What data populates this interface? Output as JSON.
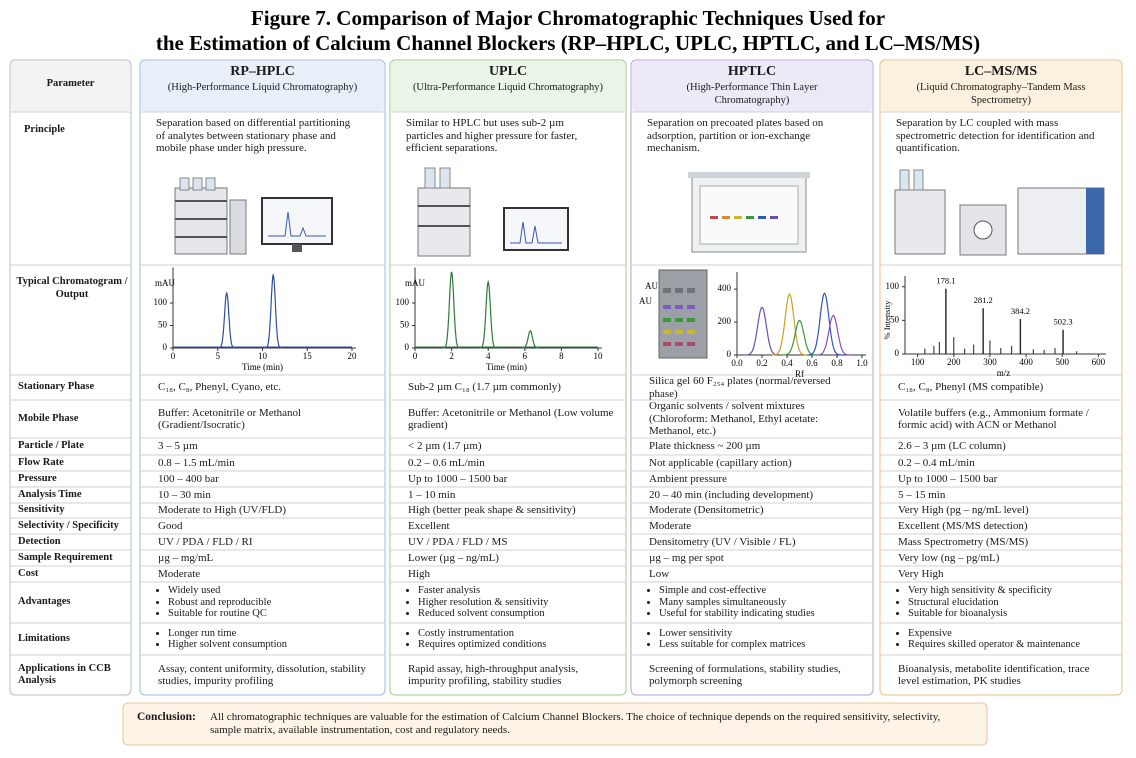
{
  "title": [
    "Figure 7. Comparison of Major Chromatographic Techniques Used for",
    "the Estimation of Calcium Channel Blockers (RP–HPLC, UPLC, HPTLC, and LC–MS/MS)"
  ],
  "table": {
    "corner": "Parameter",
    "columns": [
      {
        "name": "RP–HPLC",
        "full": "(High-Performance Liquid Chromatography)",
        "color": "#9db8e0",
        "tint": "#e8eff9"
      },
      {
        "name": "UPLC",
        "full": "(Ultra-Performance Liquid Chromatography)",
        "color": "#9ccb94",
        "tint": "#eaf4e7"
      },
      {
        "name": "HPTLC",
        "full": "(High-Performance Thin Layer Chromatography)",
        "color": "#b4a6d8",
        "tint": "#eee9f7"
      },
      {
        "name": "LC–MS/MS",
        "full": "(Liquid Chromatography–Tandem Mass Spectrometry)",
        "color": "#e6c086",
        "tint": "#fcf0de"
      }
    ],
    "principle": {
      "label": "Principle",
      "cells": [
        "Separation based on differential partitioning of analytes between stationary phase and mobile phase under high pressure.",
        "Similar to HPLC but uses sub-2 µm particles and higher pressure for faster, efficient separations.",
        "Separation on precoated plates based on adsorption, partition or ion-exchange mechanism.",
        "Separation by LC coupled with mass spectrometric detection for identification and quantification."
      ]
    },
    "output_label": "Typical Chromatogram / Output",
    "rows": [
      {
        "label": "Stationary Phase",
        "cells": [
          "C₁₈, C₈, Phenyl, Cyano, etc.",
          "Sub-2 µm C₁₈ (1.7 µm commonly)",
          "Silica gel 60 F₂₅₄ plates (normal/reversed phase)",
          "C₁₈, C₈, Phenyl (MS compatible)"
        ]
      },
      {
        "label": "Mobile Phase",
        "cells": [
          "Buffer: Acetonitrile or Methanol (Gradient/Isocratic)",
          "Buffer: Acetonitrile or Methanol (Low volume gradient)",
          "Organic solvents / solvent mixtures (Chloroform: Methanol, Ethyl acetate: Methanol, etc.)",
          "Volatile buffers (e.g., Ammonium formate / formic acid) with ACN or Methanol"
        ]
      },
      {
        "label": "Particle / Plate",
        "cells": [
          "3 – 5 µm",
          "< 2 µm (1.7 µm)",
          "Plate thickness ~ 200 µm",
          "2.6 – 3 µm (LC column)"
        ]
      },
      {
        "label": "Flow Rate",
        "cells": [
          "0.8 – 1.5 mL/min",
          "0.2 – 0.6 mL/min",
          "Not applicable (capillary action)",
          "0.2 – 0.4 mL/min"
        ]
      },
      {
        "label": "Pressure",
        "cells": [
          "100 – 400 bar",
          "Up to 1000 – 1500 bar",
          "Ambient pressure",
          "Up to 1000 – 1500 bar"
        ]
      },
      {
        "label": "Analysis Time",
        "cells": [
          "10 – 30 min",
          "1 – 10 min",
          "20 – 40 min (including development)",
          "5 – 15 min"
        ]
      },
      {
        "label": "Sensitivity",
        "cells": [
          "Moderate to High (UV/FLD)",
          "High (better peak shape & sensitivity)",
          "Moderate (Densitometric)",
          "Very High (pg – ng/mL level)"
        ]
      },
      {
        "label": "Selectivity / Specificity",
        "cells": [
          "Good",
          "Excellent",
          "Moderate",
          "Excellent (MS/MS detection)"
        ]
      },
      {
        "label": "Detection",
        "cells": [
          "UV / PDA / FLD / RI",
          "UV / PDA / FLD / MS",
          "Densitometry (UV / Visible / FL)",
          "Mass Spectrometry (MS/MS)"
        ]
      },
      {
        "label": "Sample Requirement",
        "cells": [
          "µg – mg/mL",
          "Lower (µg – ng/mL)",
          "µg – mg per spot",
          "Very low (ng – pg/mL)"
        ]
      },
      {
        "label": "Cost",
        "cells": [
          "Moderate",
          "High",
          "Low",
          "Very High"
        ]
      },
      {
        "label": "Advantages",
        "cells": [
          [
            "Widely used",
            "Robust and reproducible",
            "Suitable for routine QC"
          ],
          [
            "Faster analysis",
            "Higher resolution & sensitivity",
            "Reduced solvent consumption"
          ],
          [
            "Simple and cost-effective",
            "Many samples simultaneously",
            "Useful for stability indicating studies"
          ],
          [
            "Very high sensitivity & specificity",
            "Structural elucidation",
            "Suitable for bioanalysis"
          ]
        ]
      },
      {
        "label": "Limitations",
        "cells": [
          [
            "Longer run time",
            "Higher solvent consumption"
          ],
          [
            "Costly instrumentation",
            "Requires optimized conditions"
          ],
          [
            "Lower sensitivity",
            "Less suitable for complex matrices"
          ],
          [
            "Expensive",
            "Requires skilled operator & maintenance"
          ]
        ]
      },
      {
        "label": "Applications in CCB Analysis",
        "cells": [
          "Assay, content uniformity, dissolution, stability studies, impurity profiling",
          "Rapid assay, high-throughput analysis, impurity profiling, stability studies",
          "Screening of formulations, stability studies, polymorph screening",
          "Bioanalysis, metabolite identification, trace level estimation, PK studies"
        ]
      }
    ]
  },
  "charts": [
    {
      "type": "chromatogram",
      "y_label": "mAU",
      "x_label": "Time (min)",
      "xlim": [
        0,
        20
      ],
      "xticks": [
        0,
        5,
        10,
        15,
        20
      ],
      "ylim": [
        0,
        170
      ],
      "yticks": [
        0,
        50,
        100
      ],
      "color": "#2f4f9c",
      "peaks": {
        "x": [
          6,
          11.2
        ],
        "values": [
          122,
          162
        ]
      }
    },
    {
      "type": "chromatogram",
      "y_label": "mAU",
      "x_label": "Time (min)",
      "xlim": [
        0,
        10
      ],
      "xticks": [
        0,
        2,
        4,
        6,
        8,
        10
      ],
      "ylim": [
        0,
        170
      ],
      "yticks": [
        0,
        50,
        100
      ],
      "color": "#2e7a3a",
      "peaks": {
        "x": [
          2,
          4,
          6.3
        ],
        "values": [
          169,
          147,
          38
        ]
      }
    },
    {
      "type": "densitogram",
      "y_label": "AU",
      "plate_label": "AU",
      "x_label": "Rf",
      "xlim": [
        0,
        1
      ],
      "xticks": [
        {
          "value": 0,
          "label": "0.0"
        },
        {
          "value": 0.2,
          "label": "0.2"
        },
        {
          "value": 0.4,
          "label": "0.4"
        },
        {
          "value": 0.6,
          "label": "0.6"
        },
        {
          "value": 0.8,
          "label": "0.8"
        },
        {
          "value": 1,
          "label": "1.0"
        }
      ],
      "ylim": [
        0,
        480
      ],
      "yticks": [
        0,
        200,
        400
      ],
      "peaks": {
        "x": [
          0.2,
          0.42,
          0.5,
          0.7,
          0.77
        ],
        "values": [
          290,
          370,
          210,
          375,
          240
        ],
        "colors": [
          "#6b4fb0",
          "#c9a227",
          "#3a9a3a",
          "#2c56b8",
          "#8a4fc0"
        ]
      }
    },
    {
      "type": "spectrum",
      "y_label": "% Intensity",
      "x_label": "m/z",
      "xlim": [
        65,
        610
      ],
      "xticks": [
        100,
        200,
        300,
        400,
        500,
        600
      ],
      "ylim": [
        0,
        110
      ],
      "yticks": [
        0,
        50,
        100
      ],
      "color": "#222222",
      "peaks": {
        "x": [
          178.1,
          281.2,
          384.2,
          502.3
        ],
        "values": [
          97,
          68,
          52,
          36
        ]
      },
      "minor_peaks": {
        "x": [
          120,
          145,
          160,
          200,
          230,
          255,
          300,
          330,
          360,
          420,
          450,
          480,
          540
        ],
        "values": [
          8,
          12,
          18,
          25,
          8,
          14,
          20,
          9,
          12,
          7,
          6,
          9,
          4
        ]
      }
    }
  ],
  "conclusion": {
    "label": "Conclusion:",
    "text": "All chromatographic techniques are valuable for the estimation of Calcium Channel Blockers. The choice of technique depends on the required sensitivity, selectivity, sample matrix, available instrumentation, cost and regulatory needs."
  }
}
